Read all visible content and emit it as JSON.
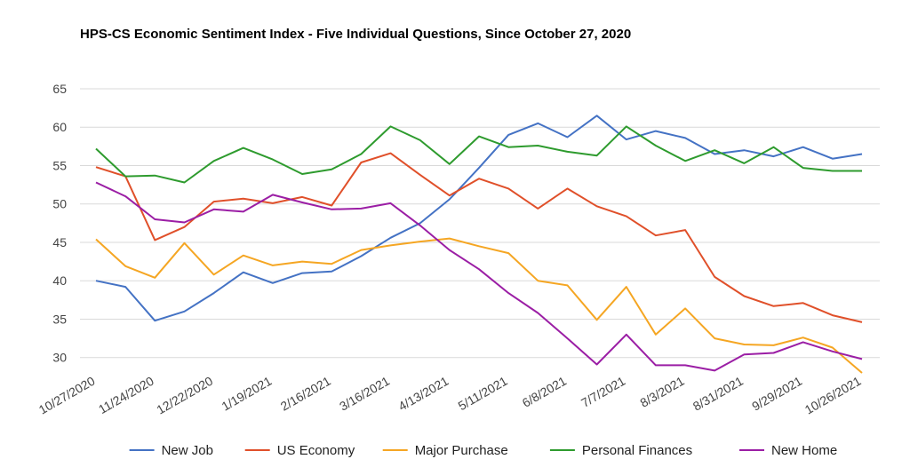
{
  "chart_data": {
    "type": "line",
    "title": "HPS-CS Economic Sentiment Index - Five Individual Questions, Since October 27, 2020",
    "xlabel": "",
    "ylabel": "",
    "ylim": [
      28,
      65
    ],
    "yticks": [
      30,
      35,
      40,
      45,
      50,
      55,
      60,
      65
    ],
    "grid": true,
    "legend_position": "bottom",
    "x": [
      "10/27/2020",
      "11/10/2020",
      "11/24/2020",
      "12/8/2020",
      "12/22/2020",
      "1/5/2021",
      "1/19/2021",
      "2/2/2021",
      "2/16/2021",
      "3/2/2021",
      "3/16/2021",
      "3/30/2021",
      "4/13/2021",
      "4/27/2021",
      "5/11/2021",
      "5/25/2021",
      "6/8/2021",
      "6/22/2021",
      "7/7/2021",
      "7/20/2021",
      "8/3/2021",
      "8/17/2021",
      "8/31/2021",
      "9/14/2021",
      "9/29/2021",
      "10/12/2021",
      "10/26/2021"
    ],
    "xtick_labels": [
      "10/27/2020",
      "11/24/2020",
      "12/22/2020",
      "1/19/2021",
      "2/16/2021",
      "3/16/2021",
      "4/13/2021",
      "5/11/2021",
      "6/8/2021",
      "7/7/2021",
      "8/3/2021",
      "8/31/2021",
      "9/29/2021",
      "10/26/2021"
    ],
    "series": [
      {
        "name": "New Job",
        "color": "#4472c4",
        "values": [
          40.0,
          39.2,
          34.8,
          36.0,
          38.4,
          41.1,
          39.7,
          41.0,
          41.2,
          43.2,
          45.6,
          47.5,
          50.6,
          54.7,
          59.0,
          60.5,
          58.7,
          61.5,
          58.4,
          59.5,
          58.6,
          56.5,
          57.0,
          56.2,
          57.4,
          55.9,
          56.5
        ]
      },
      {
        "name": "US Economy",
        "color": "#e0502a",
        "values": [
          54.8,
          53.6,
          45.3,
          47.0,
          50.3,
          50.7,
          50.1,
          50.9,
          49.8,
          55.4,
          56.6,
          53.8,
          51.1,
          53.3,
          52.0,
          49.4,
          52.0,
          49.7,
          48.4,
          45.9,
          46.6,
          40.5,
          38.0,
          36.7,
          37.1,
          35.5,
          34.6
        ]
      },
      {
        "name": "Major Purchase",
        "color": "#f5a623",
        "values": [
          45.4,
          41.9,
          40.4,
          44.9,
          40.8,
          43.3,
          42.0,
          42.5,
          42.2,
          44.0,
          44.6,
          45.1,
          45.5,
          44.5,
          43.6,
          40.0,
          39.4,
          34.9,
          39.2,
          33.0,
          36.4,
          32.5,
          31.7,
          31.6,
          32.6,
          31.3,
          28.0
        ]
      },
      {
        "name": "Personal Finances",
        "color": "#2e9b2e",
        "values": [
          57.2,
          53.6,
          53.7,
          52.8,
          55.6,
          57.3,
          55.8,
          53.9,
          54.5,
          56.5,
          60.1,
          58.3,
          55.2,
          58.8,
          57.4,
          57.6,
          56.8,
          56.3,
          60.1,
          57.6,
          55.6,
          57.0,
          55.3,
          57.4,
          54.7,
          54.3,
          54.3
        ]
      },
      {
        "name": "New Home",
        "color": "#9b1ea5",
        "values": [
          52.8,
          51.0,
          48.0,
          47.6,
          49.3,
          49.0,
          51.2,
          50.2,
          49.3,
          49.4,
          50.1,
          47.2,
          44.0,
          41.5,
          38.4,
          35.8,
          32.5,
          29.1,
          33.0,
          29.0,
          29.0,
          28.3,
          30.4,
          30.6,
          32.0,
          30.8,
          29.8
        ]
      }
    ]
  }
}
